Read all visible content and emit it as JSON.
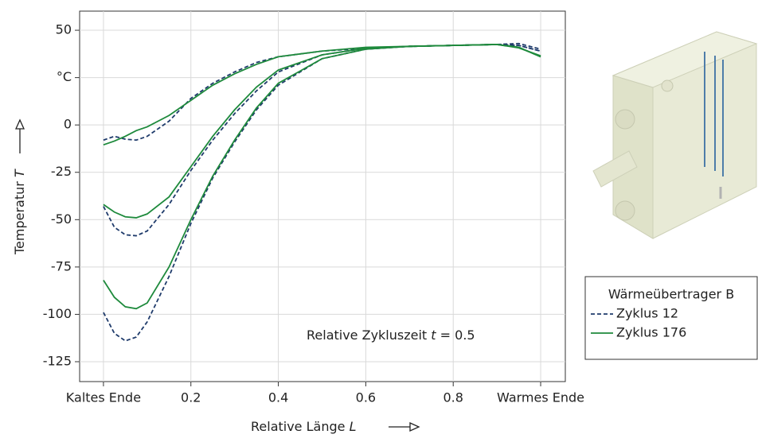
{
  "chart_data": {
    "type": "line",
    "annotation": [
      "Relative Zykluszeit",
      "t",
      "= 0.5"
    ],
    "x_label": [
      "Relative Länge",
      "L"
    ],
    "y_label": [
      "Temperatur",
      "T"
    ],
    "legend_title": "Wärmeübertrager B",
    "x": [
      0,
      0.025,
      0.05,
      0.075,
      0.1,
      0.15,
      0.2,
      0.25,
      0.3,
      0.35,
      0.4,
      0.5,
      0.6,
      0.7,
      0.8,
      0.9,
      0.95,
      1.0
    ],
    "series": [
      {
        "name": "Zyklus 12",
        "color": "#1f3b6b",
        "dashed": true,
        "values": [
          [
            -8,
            -6,
            -7.5,
            -8,
            -6,
            2,
            14,
            22,
            28,
            33,
            36,
            39,
            40.5,
            41.5,
            42,
            42.5,
            43,
            40
          ],
          [
            -43,
            -54,
            -58,
            -58.5,
            -56,
            -42,
            -24,
            -8,
            6,
            18,
            28,
            37,
            40.5,
            41.5,
            42,
            42.5,
            42,
            39
          ],
          [
            -99,
            -110,
            -114,
            -112,
            -104,
            -80,
            -52,
            -28,
            -9,
            8,
            21,
            35,
            40,
            41.5,
            42,
            42.5,
            42,
            39
          ]
        ]
      },
      {
        "name": "Zyklus 176",
        "color": "#1e8a3c",
        "dashed": false,
        "values": [
          [
            -10.5,
            -8.5,
            -6,
            -3,
            -1,
            5,
            13,
            21,
            27,
            32,
            36,
            39,
            41,
            41.5,
            42,
            42.5,
            40.7,
            36.5
          ],
          [
            -42,
            -46,
            -48.5,
            -49,
            -47,
            -38,
            -22,
            -6,
            8,
            20,
            29,
            37,
            40.5,
            41.5,
            42,
            42.5,
            41,
            36
          ],
          [
            -82,
            -91,
            -96,
            -97,
            -94,
            -75,
            -50,
            -27,
            -8,
            9,
            22,
            35,
            40,
            41.5,
            42,
            42.5,
            41,
            36
          ]
        ]
      }
    ],
    "xlim": [
      -0.0545,
      1.0564
    ],
    "ylim": [
      -135.5,
      60.1
    ],
    "xticks": [
      {
        "value": 0,
        "label": "Kaltes Ende"
      },
      0.2,
      0.4,
      0.6,
      0.8,
      {
        "value": 1,
        "label": "Warmes Ende"
      }
    ],
    "yticks": [
      -125,
      -100,
      -75,
      -50,
      -25,
      0,
      {
        "value": 25,
        "label": "°C"
      },
      50
    ],
    "grid": true
  }
}
